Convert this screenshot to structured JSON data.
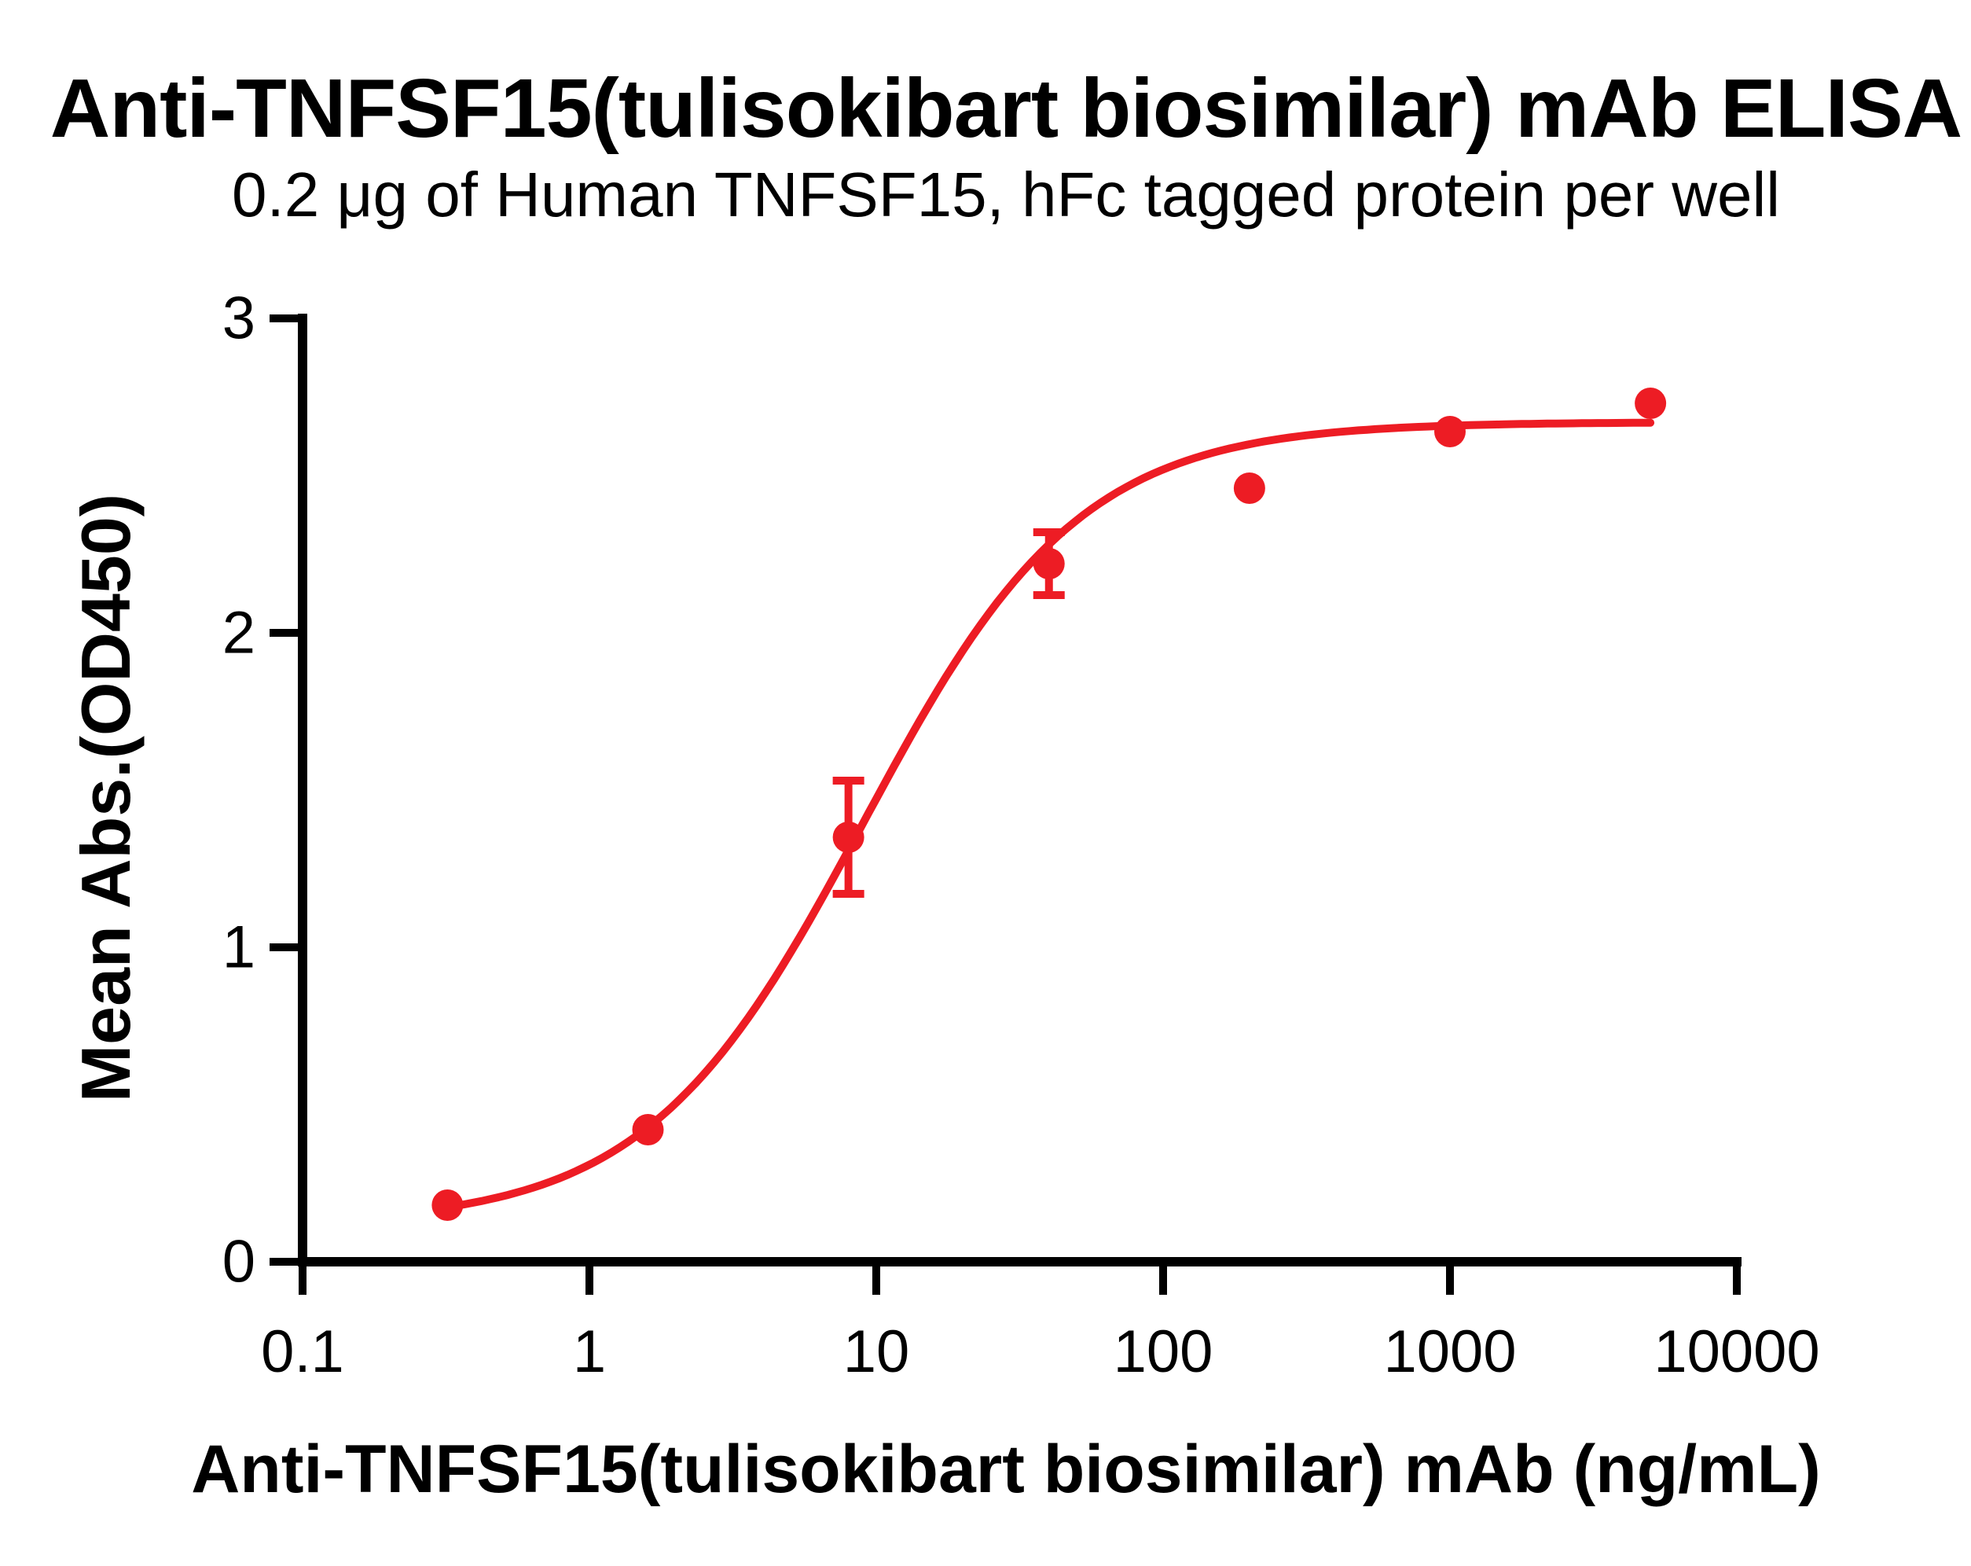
{
  "title": "Anti-TNFSF15(tulisokibart biosimilar) mAb ELISA",
  "subtitle": "0.2 μg of Human TNFSF15, hFc tagged protein per well",
  "colors": {
    "accent": "#ED1C24",
    "axis": "#000000",
    "background": "#FFFFFF"
  },
  "chart_data": {
    "type": "scatter",
    "title": "Anti-TNFSF15(tulisokibart biosimilar) mAb ELISA",
    "subtitle": "0.2 μg of Human TNFSF15, hFc tagged protein per well",
    "xlabel": "Anti-TNFSF15(tulisokibart biosimilar) mAb (ng/mL)",
    "ylabel": "Mean Abs.(OD450)",
    "x_scale": "log10",
    "xlim": [
      0.1,
      10000
    ],
    "ylim": [
      0,
      3
    ],
    "x_ticks": [
      0.1,
      1,
      10,
      100,
      1000,
      10000
    ],
    "x_tick_labels": [
      "0.1",
      "1",
      "10",
      "100",
      "1000",
      "10000"
    ],
    "y_ticks": [
      0,
      1,
      2,
      3
    ],
    "y_tick_labels": [
      "0",
      "1",
      "2",
      "3"
    ],
    "grid": false,
    "legend": "none",
    "series": [
      {
        "name": "Anti-TNFSF15(tulisokibart biosimilar) mAb",
        "color": "#ED1C24",
        "marker": "circle",
        "points": [
          {
            "x": 0.32,
            "y": 0.18,
            "err": 0
          },
          {
            "x": 1.6,
            "y": 0.42,
            "err": 0
          },
          {
            "x": 8,
            "y": 1.35,
            "err": 0.18
          },
          {
            "x": 40,
            "y": 2.22,
            "err": 0.1
          },
          {
            "x": 200,
            "y": 2.46,
            "err": 0
          },
          {
            "x": 1000,
            "y": 2.64,
            "err": 0
          },
          {
            "x": 5000,
            "y": 2.73,
            "err": 0
          }
        ],
        "fit": {
          "model": "4PL",
          "bottom": 0.12,
          "top": 2.67,
          "ec50": 9.0,
          "hill": 1.15,
          "x_range": [
            0.32,
            5000
          ]
        }
      }
    ]
  }
}
